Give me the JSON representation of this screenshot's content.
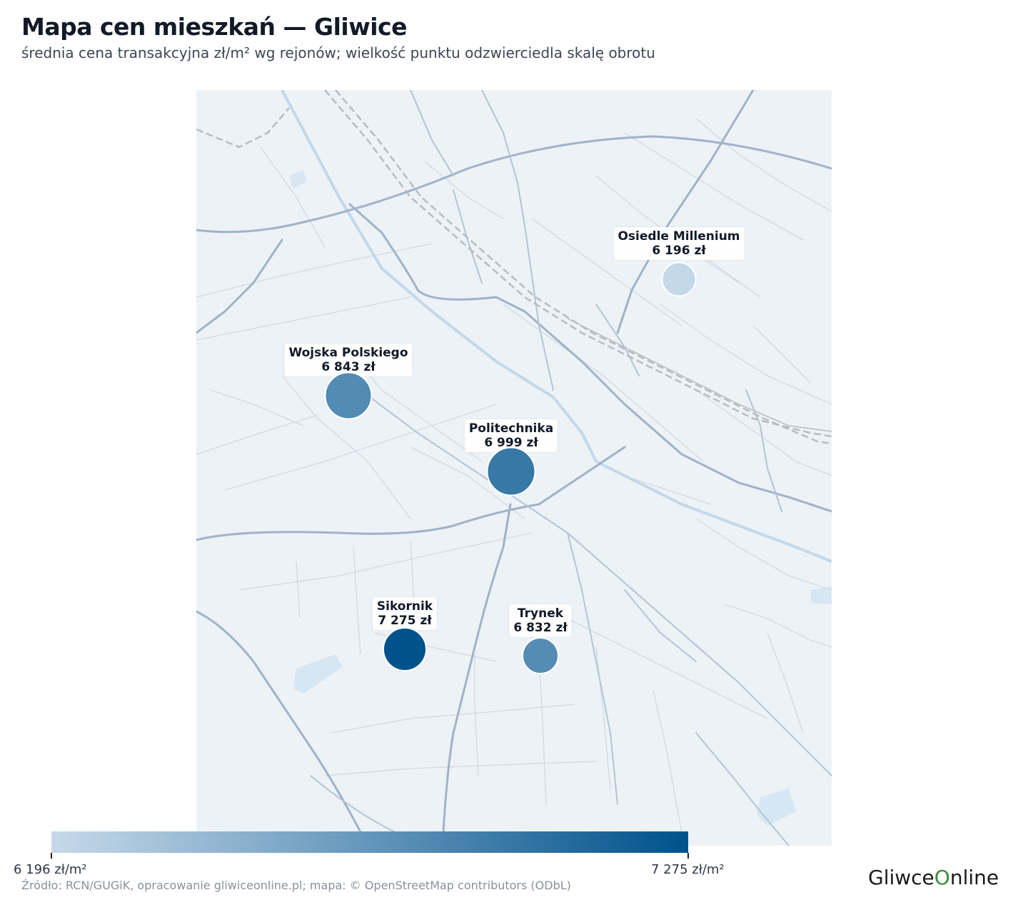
{
  "title": "Mapa cen mieszkań — Gliwice",
  "subtitle": "średnia cena transakcyjna zł/m² wg rejonów; wielkość punktu odzwierciedla skalę obrotu",
  "colors": {
    "low": "#c6d9e9",
    "high": "#00528c",
    "map_bg": "#edf2f7",
    "road": "#9fb3c8",
    "river": "#c2d8ea",
    "rail": "#b7bcc4"
  },
  "districts": [
    {
      "name": "Osiedle Millenium",
      "price_label": "6 196 zł",
      "price": 6196,
      "color": "#c3d8e9"
    },
    {
      "name": "Wojska Polskiego",
      "price_label": "6 843 zł",
      "price": 6843,
      "color": "#528bb4"
    },
    {
      "name": "Politechnika",
      "price_label": "6 999 zł",
      "price": 6999,
      "color": "#3878a6"
    },
    {
      "name": "Sikornik",
      "price_label": "7 275 zł",
      "price": 7275,
      "color": "#00528c"
    },
    {
      "name": "Trynek",
      "price_label": "6 832 zł",
      "price": 6832,
      "color": "#548cb5"
    }
  ],
  "colorbar": {
    "min_label": "6 196 zł/m²",
    "max_label": "7 275 zł/m²",
    "min": 6196,
    "max": 7275
  },
  "source": "Źródło: RCN/GUGiK, opracowanie gliwiceonline.pl; mapa: © OpenStreetMap contributors (ODbL)",
  "logo": {
    "part1": "Gliwce",
    "part2": "O",
    "part3": "nline"
  }
}
